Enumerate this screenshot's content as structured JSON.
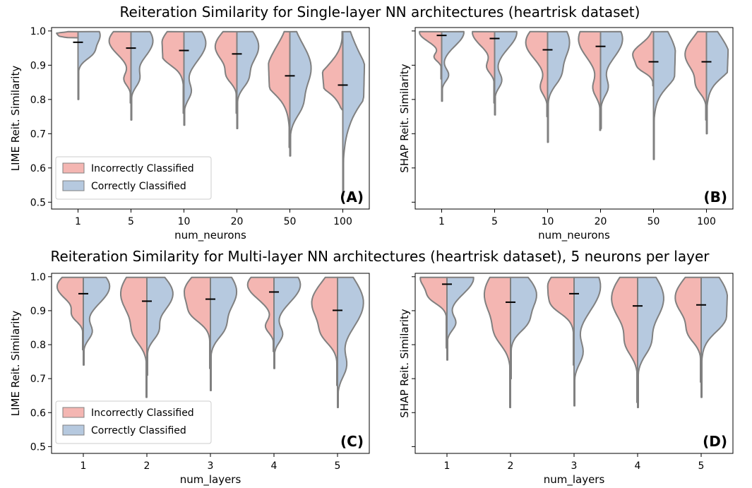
{
  "titles": {
    "top": "Reiteration Similarity for Single-layer NN architectures (heartrisk dataset)",
    "bottom": "Reiteration Similarity for Multi-layer NN architectures (heartrisk dataset), 5 neurons per layer"
  },
  "legend": {
    "incorrect": "Incorrectly Classified",
    "correct": "Correctly Classified"
  },
  "colors": {
    "incorrect": "#f4b6b2",
    "correct": "#b6c9df",
    "outline": "#808080",
    "mean": "#000000"
  },
  "chart_data": [
    {
      "id": "A",
      "type": "violin",
      "panel_label": "(A)",
      "xlabel": "num_neurons",
      "ylabel": "LIME Reit. Similarity",
      "categories": [
        "1",
        "5",
        "10",
        "20",
        "50",
        "100"
      ],
      "ylim": [
        0.48,
        1.01
      ],
      "yticks": [
        0.5,
        0.6,
        0.7,
        0.8,
        0.9,
        1.0
      ],
      "ytick_labels": [
        "0.5",
        "0.6",
        "0.7",
        "0.8",
        "0.9",
        "1.0"
      ],
      "show_legend": true,
      "means": [
        0.967,
        0.95,
        0.943,
        0.933,
        0.869,
        0.842
      ],
      "series": [
        {
          "name": "Incorrectly Classified",
          "mins": [
            0.98,
            0.79,
            0.76,
            0.76,
            0.66,
            0.77
          ]
        },
        {
          "name": "Correctly Classified",
          "mins": [
            0.8,
            0.74,
            0.725,
            0.715,
            0.635,
            0.52
          ]
        }
      ]
    },
    {
      "id": "B",
      "type": "violin",
      "panel_label": "(B)",
      "xlabel": "num_neurons",
      "ylabel": "SHAP Reit. Similarity",
      "categories": [
        "1",
        "5",
        "10",
        "20",
        "50",
        "100"
      ],
      "ylim": [
        0.48,
        1.01
      ],
      "yticks": [
        0.5,
        0.6,
        0.7,
        0.8,
        0.9,
        1.0
      ],
      "ytick_labels": [],
      "show_legend": false,
      "means": [
        0.987,
        0.978,
        0.945,
        0.955,
        0.91,
        0.91
      ],
      "series": [
        {
          "name": "Incorrectly Classified",
          "mins": [
            0.86,
            0.79,
            0.75,
            0.71,
            0.84,
            0.74
          ]
        },
        {
          "name": "Correctly Classified",
          "mins": [
            0.795,
            0.755,
            0.675,
            0.715,
            0.625,
            0.7
          ]
        }
      ]
    },
    {
      "id": "C",
      "type": "violin",
      "panel_label": "(C)",
      "xlabel": "num_layers",
      "ylabel": "LIME Reit. Similarity",
      "categories": [
        "1",
        "2",
        "3",
        "4",
        "5"
      ],
      "ylim": [
        0.48,
        1.01
      ],
      "yticks": [
        0.5,
        0.6,
        0.7,
        0.8,
        0.9,
        1.0
      ],
      "ytick_labels": [
        "0.5",
        "0.6",
        "0.7",
        "0.8",
        "0.9",
        "1.0"
      ],
      "show_legend": true,
      "means": [
        0.95,
        0.928,
        0.934,
        0.955,
        0.901
      ],
      "series": [
        {
          "name": "Incorrectly Classified",
          "mins": [
            0.785,
            0.645,
            0.73,
            0.78,
            0.68
          ]
        },
        {
          "name": "Correctly Classified",
          "mins": [
            0.74,
            0.71,
            0.665,
            0.73,
            0.615
          ]
        }
      ]
    },
    {
      "id": "D",
      "type": "violin",
      "panel_label": "(D)",
      "xlabel": "num_layers",
      "ylabel": "SHAP Reit. Similarity",
      "categories": [
        "1",
        "2",
        "3",
        "4",
        "5"
      ],
      "ylim": [
        0.48,
        1.01
      ],
      "yticks": [
        0.5,
        0.6,
        0.7,
        0.8,
        0.9,
        1.0
      ],
      "ytick_labels": [],
      "show_legend": false,
      "means": [
        0.978,
        0.925,
        0.95,
        0.914,
        0.917
      ],
      "series": [
        {
          "name": "Incorrectly Classified",
          "mins": [
            0.79,
            0.615,
            0.74,
            0.63,
            0.69
          ]
        },
        {
          "name": "Correctly Classified",
          "mins": [
            0.755,
            0.7,
            0.62,
            0.615,
            0.645
          ]
        }
      ]
    }
  ]
}
